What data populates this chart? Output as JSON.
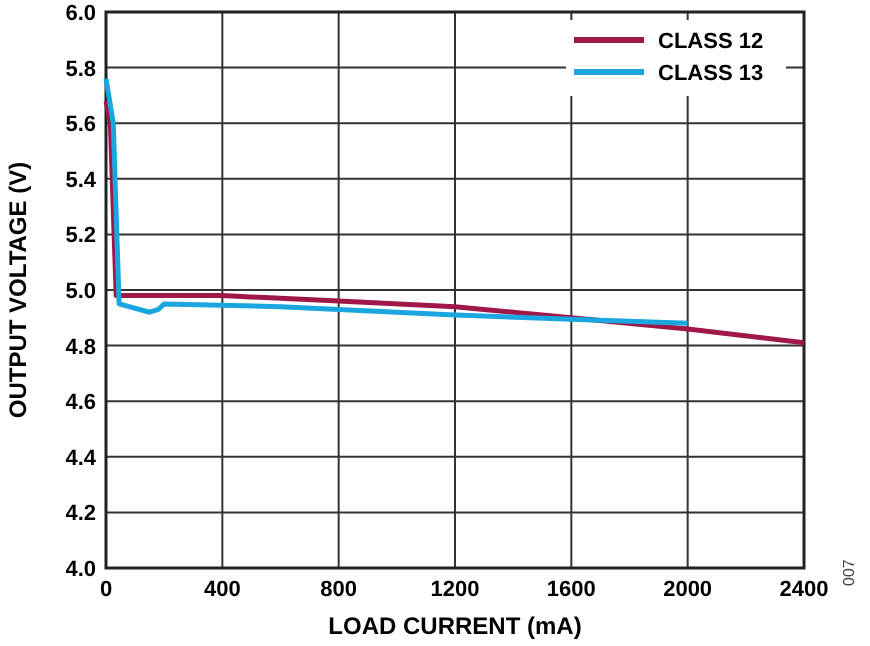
{
  "chart_data": {
    "type": "line",
    "xlabel": "LOAD CURRENT (mA)",
    "ylabel": "OUTPUT VOLTAGE (V)",
    "annotations": [
      "007"
    ],
    "xlim": [
      0,
      2400
    ],
    "xticks": [
      0,
      400,
      800,
      1200,
      1600,
      2000,
      2400
    ],
    "ylim": [
      4.0,
      6.0
    ],
    "yticks": [
      {
        "value": 4,
        "label": "4.0"
      },
      {
        "value": 4.2,
        "label": "4.2"
      },
      {
        "value": 4.4,
        "label": "4.4"
      },
      {
        "value": 4.6,
        "label": "4.6"
      },
      {
        "value": 4.8,
        "label": "4.8"
      },
      {
        "value": 5,
        "label": "5.0"
      },
      {
        "value": 5.2,
        "label": "5.2"
      },
      {
        "value": 5.4,
        "label": "5.4"
      },
      {
        "value": 5.6,
        "label": "5.6"
      },
      {
        "value": 5.8,
        "label": "5.8"
      },
      {
        "value": 6,
        "label": "6.0"
      }
    ],
    "grid": true,
    "legend": "top right",
    "marker": "none",
    "line_style": "solid",
    "series": [
      {
        "name": "CLASS 12",
        "color": "#a0174a",
        "x": [
          0,
          15,
          35,
          400,
          800,
          1200,
          1600,
          2000,
          2400
        ],
        "values": [
          5.68,
          5.6,
          4.98,
          4.98,
          4.96,
          4.94,
          4.9,
          4.86,
          4.81
        ]
      },
      {
        "name": "CLASS 13",
        "color": "#1aa7e0",
        "x": [
          0,
          25,
          45,
          150,
          180,
          200,
          600,
          1200,
          1600,
          2000
        ],
        "values": [
          5.76,
          5.6,
          4.95,
          4.92,
          4.93,
          4.95,
          4.94,
          4.91,
          4.895,
          4.88
        ]
      }
    ]
  }
}
